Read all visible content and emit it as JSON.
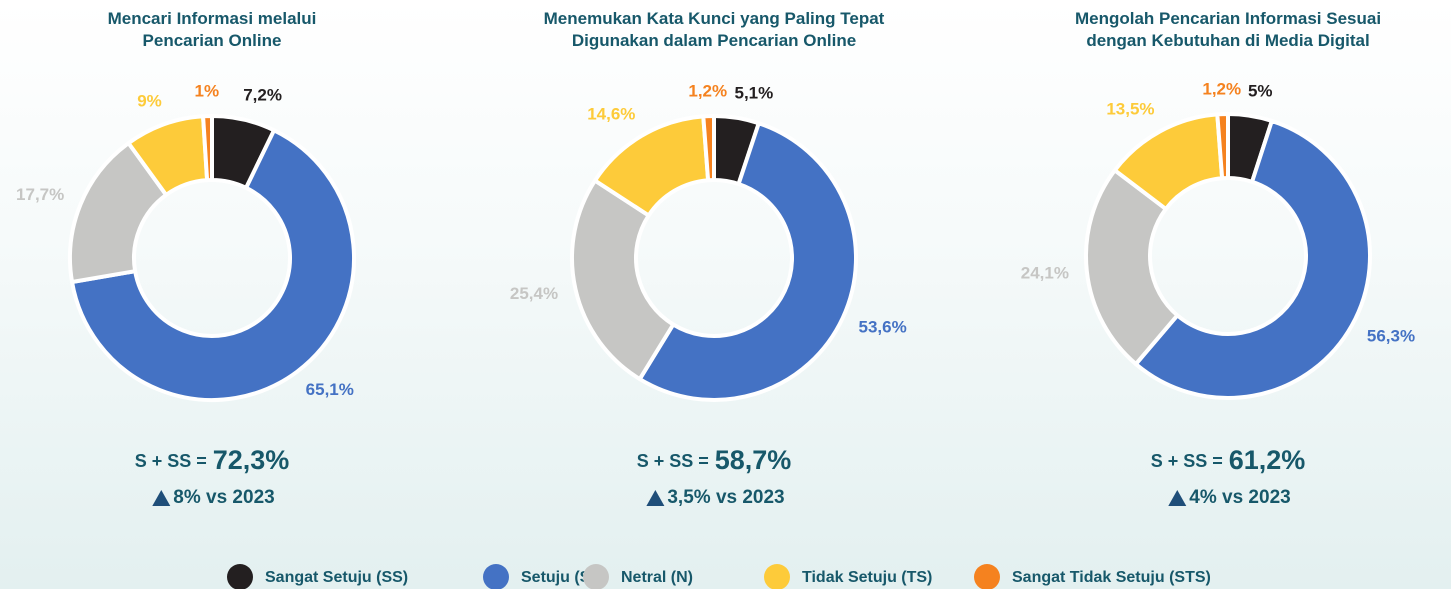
{
  "chart_data": [
    {
      "type": "pie",
      "title": "Mencari Informasi melalui Pencarian Online",
      "categories": [
        "Sangat Setuju (SS)",
        "Setuju (S)",
        "Netral (N)",
        "Tidak Setuju (TS)",
        "Sangat Tidak Setuju (STS)"
      ],
      "values": [
        7.2,
        65.1,
        17.7,
        9,
        1
      ],
      "value_labels": [
        "7,2%",
        "65,1%",
        "17,7%",
        "9%",
        "1%"
      ],
      "colors": [
        "#231f20",
        "#4472c4",
        "#c6c6c4",
        "#fdcb3a",
        "#f5821f"
      ],
      "summary_prefix": "S + SS =",
      "summary": "72,3%",
      "change": "8% vs 2023"
    },
    {
      "type": "pie",
      "title": "Menemukan Kata Kunci yang Paling Tepat Digunakan dalam Pencarian Online",
      "categories": [
        "Sangat Setuju (SS)",
        "Setuju (S)",
        "Netral (N)",
        "Tidak Setuju (TS)",
        "Sangat Tidak Setuju (STS)"
      ],
      "values": [
        5.1,
        53.6,
        25.4,
        14.6,
        1.2
      ],
      "value_labels": [
        "5,1%",
        "53,6%",
        "25,4%",
        "14,6%",
        "1,2%"
      ],
      "colors": [
        "#231f20",
        "#4472c4",
        "#c6c6c4",
        "#fdcb3a",
        "#f5821f"
      ],
      "summary_prefix": "S + SS =",
      "summary": "58,7%",
      "change": "3,5% vs 2023"
    },
    {
      "type": "pie",
      "title": "Mengolah Pencarian Informasi Sesuai dengan Kebutuhan di Media Digital",
      "categories": [
        "Sangat Setuju (SS)",
        "Setuju (S)",
        "Netral (N)",
        "Tidak Setuju (TS)",
        "Sangat Tidak Setuju (STS)"
      ],
      "values": [
        5,
        56.3,
        24.1,
        13.5,
        1.2
      ],
      "value_labels": [
        "5%",
        "56,3%",
        "24,1%",
        "13,5%",
        "1,2%"
      ],
      "colors": [
        "#231f20",
        "#4472c4",
        "#c6c6c4",
        "#fdcb3a",
        "#f5821f"
      ],
      "summary_prefix": "S + SS =",
      "summary": "61,2%",
      "change": "4% vs 2023"
    }
  ]
}
